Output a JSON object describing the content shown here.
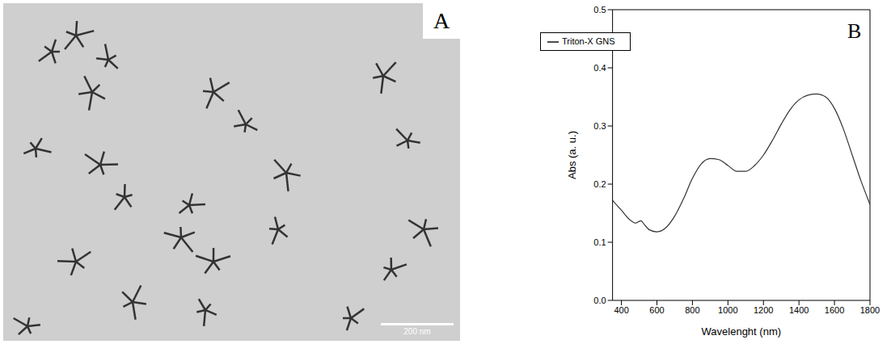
{
  "image_panel": {
    "label": "A",
    "scale_bar": "200 nm"
  },
  "chart_panel_label": "B",
  "chart_data": {
    "type": "line",
    "xlabel": "Wavelenght (nm)",
    "ylabel": "Abs (a. u.)",
    "x": [
      350,
      400,
      450,
      480,
      500,
      510,
      530,
      560,
      600,
      650,
      700,
      750,
      800,
      850,
      900,
      950,
      1000,
      1050,
      1100,
      1150,
      1200,
      1250,
      1300,
      1350,
      1400,
      1450,
      1500,
      1550,
      1600,
      1650,
      1700,
      1750,
      1800
    ],
    "series": [
      {
        "name": "Triton-X GNS",
        "color": "#333333",
        "values": [
          0.172,
          0.155,
          0.138,
          0.133,
          0.136,
          0.137,
          0.13,
          0.121,
          0.118,
          0.125,
          0.145,
          0.175,
          0.21,
          0.235,
          0.244,
          0.242,
          0.232,
          0.222,
          0.222,
          0.232,
          0.25,
          0.275,
          0.303,
          0.328,
          0.345,
          0.353,
          0.355,
          0.35,
          0.33,
          0.295,
          0.25,
          0.205,
          0.165
        ]
      }
    ],
    "xlim": [
      350,
      1800
    ],
    "xticks": [
      400,
      600,
      800,
      1000,
      1200,
      1400,
      1600,
      1800
    ],
    "ylim": [
      0,
      0.5
    ],
    "yticks": [
      {
        "value": 0,
        "label": "0.0"
      },
      {
        "value": 0.1,
        "label": "0.1"
      },
      {
        "value": 0.2,
        "label": "0.2"
      },
      {
        "value": 0.3,
        "label": "0.3"
      },
      {
        "value": 0.4,
        "label": "0.4"
      },
      {
        "value": 0.5,
        "label": "0.5"
      }
    ],
    "legend": "top-left",
    "grid": false
  }
}
